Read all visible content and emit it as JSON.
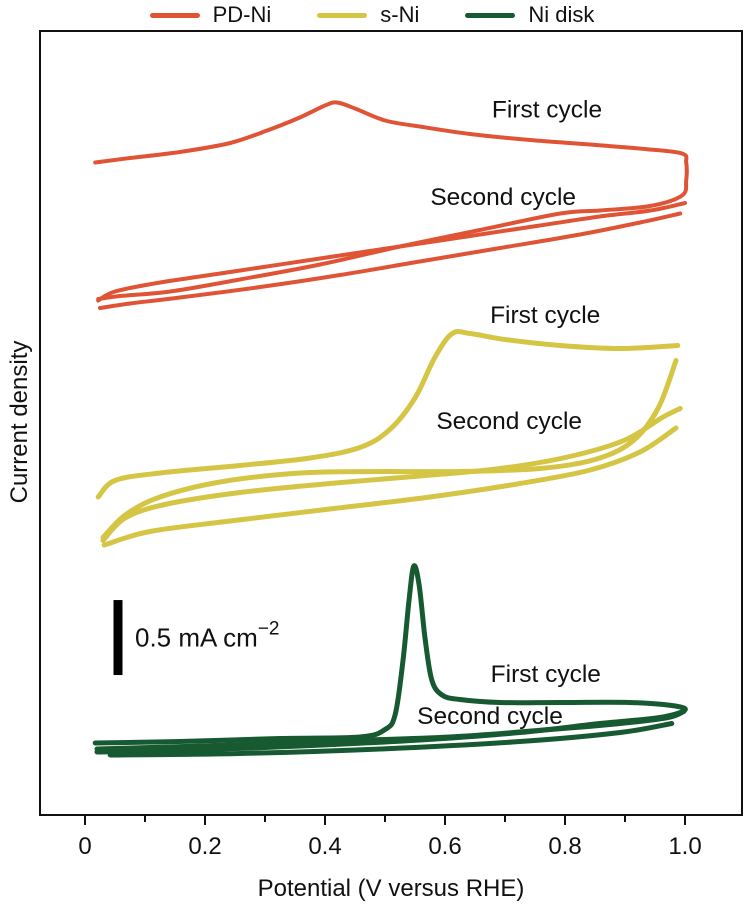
{
  "legend": {
    "items": [
      {
        "label": "PD-Ni",
        "color": "#E05436"
      },
      {
        "label": "s-Ni",
        "color": "#D5C545"
      },
      {
        "label": "Ni disk",
        "color": "#175A32"
      }
    ]
  },
  "axes": {
    "x": {
      "label": "Potential (V versus RHE)",
      "range": [
        0,
        1.0
      ],
      "major_ticks": [
        0,
        0.2,
        0.4,
        0.6,
        0.8,
        1.0
      ],
      "major_tick_labels": [
        "0",
        "0.2",
        "0.4",
        "0.6",
        "0.8",
        "1.0"
      ],
      "minor_ticks": [
        0.1,
        0.3,
        0.5,
        0.7,
        0.9
      ]
    },
    "y": {
      "label": "Current density",
      "ticks": "none (arbitrary units, scale bar given)"
    }
  },
  "scale_bar": {
    "label_main": "0.5 mA cm",
    "label_sup": "−2",
    "value_mA": 0.5,
    "x_V": 0.055,
    "y_bottom_I": 0.933,
    "color": "#000000"
  },
  "annotations": [
    {
      "series": "PD-Ni",
      "text": "First cycle",
      "x_V": 0.77,
      "y_I": 4.65
    },
    {
      "series": "PD-Ni",
      "text": "Second cycle",
      "x_V": 0.697,
      "y_I": 4.067
    },
    {
      "series": "s-Ni",
      "text": "First cycle",
      "x_V": 0.767,
      "y_I": 3.28
    },
    {
      "series": "s-Ni",
      "text": "Second cycle",
      "x_V": 0.707,
      "y_I": 2.573
    },
    {
      "series": "Ni disk",
      "text": "First cycle",
      "x_V": 0.768,
      "y_I": 0.887
    },
    {
      "series": "Ni disk",
      "text": "Second cycle",
      "x_V": 0.675,
      "y_I": 0.607
    }
  ],
  "chart_data": {
    "type": "line",
    "title": "",
    "xlabel": "Potential (V versus RHE)",
    "ylabel": "Current density",
    "x_range": [
      0,
      1.0
    ],
    "y_units": "mA cm^-2, arbitrary zero (traces vertically offset for display; 0.5 mA cm^-2 scale bar shown)",
    "series": [
      {
        "name": "PD-Ni",
        "color": "#E05436",
        "width": 4,
        "segments": [
          {
            "cycle": "first",
            "points": [
              [
                0.017,
                4.35
              ],
              [
                0.075,
                4.38
              ],
              [
                0.158,
                4.42
              ],
              [
                0.242,
                4.48
              ],
              [
                0.308,
                4.57
              ],
              [
                0.358,
                4.65
              ],
              [
                0.4,
                4.73
              ],
              [
                0.42,
                4.75
              ],
              [
                0.45,
                4.71
              ],
              [
                0.5,
                4.63
              ],
              [
                0.558,
                4.59
              ],
              [
                0.642,
                4.54
              ],
              [
                0.742,
                4.5
              ],
              [
                0.842,
                4.47
              ],
              [
                0.933,
                4.44
              ],
              [
                0.995,
                4.41
              ],
              [
                1.002,
                4.35
              ],
              [
                1.002,
                4.23
              ],
              [
                0.995,
                4.13
              ],
              [
                0.942,
                4.06
              ],
              [
                0.858,
                4.03
              ],
              [
                0.792,
                4.01
              ],
              [
                0.658,
                3.9
              ],
              [
                0.525,
                3.79
              ],
              [
                0.392,
                3.67
              ],
              [
                0.258,
                3.57
              ],
              [
                0.142,
                3.49
              ],
              [
                0.058,
                3.46
              ],
              [
                0.022,
                3.44
              ]
            ]
          },
          {
            "cycle": "second-forward",
            "points": [
              [
                0.022,
                3.43
              ],
              [
                0.05,
                3.49
              ],
              [
                0.125,
                3.55
              ],
              [
                0.242,
                3.62
              ],
              [
                0.375,
                3.7
              ],
              [
                0.508,
                3.78
              ],
              [
                0.642,
                3.86
              ],
              [
                0.758,
                3.93
              ],
              [
                0.858,
                3.99
              ],
              [
                0.942,
                4.03
              ],
              [
                1.0,
                4.08
              ]
            ]
          },
          {
            "cycle": "second-return",
            "points": [
              [
                0.992,
                4.01
              ],
              [
                0.925,
                3.95
              ],
              [
                0.825,
                3.87
              ],
              [
                0.692,
                3.78
              ],
              [
                0.558,
                3.69
              ],
              [
                0.425,
                3.6
              ],
              [
                0.292,
                3.52
              ],
              [
                0.158,
                3.45
              ],
              [
                0.075,
                3.41
              ],
              [
                0.025,
                3.38
              ]
            ]
          }
        ]
      },
      {
        "name": "s-Ni",
        "color": "#D5C545",
        "width": 5,
        "segments": [
          {
            "cycle": "first-forward",
            "points": [
              [
                0.022,
                2.12
              ],
              [
                0.05,
                2.23
              ],
              [
                0.125,
                2.28
              ],
              [
                0.258,
                2.33
              ],
              [
                0.375,
                2.38
              ],
              [
                0.458,
                2.45
              ],
              [
                0.508,
                2.57
              ],
              [
                0.55,
                2.78
              ],
              [
                0.583,
                3.05
              ],
              [
                0.612,
                3.21
              ],
              [
                0.642,
                3.21
              ],
              [
                0.7,
                3.17
              ],
              [
                0.792,
                3.13
              ],
              [
                0.892,
                3.11
              ],
              [
                0.988,
                3.13
              ]
            ]
          },
          {
            "cycle": "first-return",
            "points": [
              [
                0.985,
                3.03
              ],
              [
                0.955,
                2.71
              ],
              [
                0.912,
                2.49
              ],
              [
                0.85,
                2.37
              ],
              [
                0.758,
                2.31
              ],
              [
                0.625,
                2.29
              ],
              [
                0.492,
                2.29
              ],
              [
                0.358,
                2.28
              ],
              [
                0.225,
                2.22
              ],
              [
                0.125,
                2.12
              ],
              [
                0.067,
                2.0
              ],
              [
                0.03,
                1.85
              ]
            ]
          },
          {
            "cycle": "second-forward",
            "points": [
              [
                0.03,
                1.83
              ],
              [
                0.067,
                1.98
              ],
              [
                0.133,
                2.07
              ],
              [
                0.258,
                2.15
              ],
              [
                0.408,
                2.21
              ],
              [
                0.558,
                2.26
              ],
              [
                0.692,
                2.31
              ],
              [
                0.808,
                2.39
              ],
              [
                0.9,
                2.5
              ],
              [
                0.962,
                2.65
              ],
              [
                0.992,
                2.71
              ]
            ]
          },
          {
            "cycle": "second-return",
            "points": [
              [
                0.985,
                2.58
              ],
              [
                0.925,
                2.42
              ],
              [
                0.842,
                2.3
              ],
              [
                0.725,
                2.21
              ],
              [
                0.575,
                2.12
              ],
              [
                0.408,
                2.04
              ],
              [
                0.242,
                1.96
              ],
              [
                0.108,
                1.89
              ],
              [
                0.032,
                1.8
              ]
            ]
          }
        ]
      },
      {
        "name": "Ni disk",
        "color": "#175A32",
        "width": 5,
        "segments": [
          {
            "cycle": "first",
            "points": [
              [
                0.017,
                0.48
              ],
              [
                0.158,
                0.49
              ],
              [
                0.325,
                0.51
              ],
              [
                0.458,
                0.52
              ],
              [
                0.5,
                0.57
              ],
              [
                0.517,
                0.67
              ],
              [
                0.53,
                1.03
              ],
              [
                0.54,
                1.43
              ],
              [
                0.548,
                1.66
              ],
              [
                0.557,
                1.53
              ],
              [
                0.567,
                1.17
              ],
              [
                0.578,
                0.9
              ],
              [
                0.595,
                0.8
              ],
              [
                0.625,
                0.77
              ],
              [
                0.692,
                0.75
              ],
              [
                0.792,
                0.75
              ],
              [
                0.908,
                0.75
              ],
              [
                0.978,
                0.73
              ],
              [
                1.0,
                0.7
              ],
              [
                0.958,
                0.65
              ],
              [
                0.858,
                0.61
              ],
              [
                0.725,
                0.55
              ],
              [
                0.558,
                0.5
              ],
              [
                0.358,
                0.46
              ],
              [
                0.158,
                0.43
              ],
              [
                0.02,
                0.42
              ]
            ]
          },
          {
            "cycle": "second-forward",
            "points": [
              [
                0.02,
                0.44
              ],
              [
                0.192,
                0.46
              ],
              [
                0.392,
                0.49
              ],
              [
                0.608,
                0.52
              ],
              [
                0.775,
                0.57
              ],
              [
                0.892,
                0.61
              ],
              [
                0.972,
                0.65
              ],
              [
                0.998,
                0.69
              ]
            ]
          },
          {
            "cycle": "second-return",
            "points": [
              [
                0.978,
                0.61
              ],
              [
                0.892,
                0.55
              ],
              [
                0.725,
                0.49
              ],
              [
                0.492,
                0.44
              ],
              [
                0.258,
                0.41
              ],
              [
                0.042,
                0.4
              ]
            ]
          }
        ]
      }
    ],
    "legend_entries": [
      "PD-Ni",
      "s-Ni",
      "Ni disk"
    ],
    "legend_position": "top-center",
    "grid": false
  }
}
